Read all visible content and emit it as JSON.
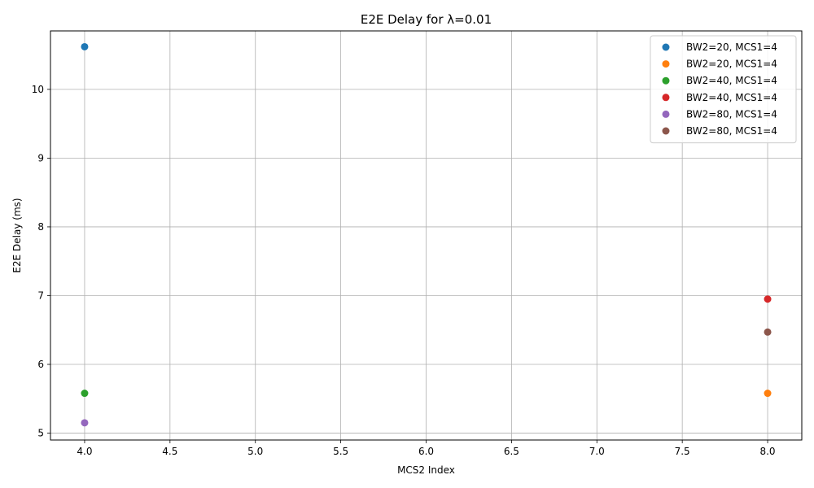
{
  "chart_data": {
    "type": "scatter",
    "title": "E2E Delay for λ=0.01",
    "xlabel": "MCS2 Index",
    "ylabel": "E2E Delay (ms)",
    "xlim": [
      3.8,
      8.2
    ],
    "ylim": [
      4.9,
      10.85
    ],
    "xticks": [
      4.0,
      4.5,
      5.0,
      5.5,
      6.0,
      6.5,
      7.0,
      7.5,
      8.0
    ],
    "xtick_labels": [
      "4.0",
      "4.5",
      "5.0",
      "5.5",
      "6.0",
      "6.5",
      "7.0",
      "7.5",
      "8.0"
    ],
    "yticks": [
      5,
      6,
      7,
      8,
      9,
      10
    ],
    "ytick_labels": [
      "5",
      "6",
      "7",
      "8",
      "9",
      "10"
    ],
    "grid": true,
    "legend_position": "top-right",
    "series": [
      {
        "name": "BW2=20, MCS1=4",
        "color": "#1f77b4",
        "points": [
          {
            "x": 4,
            "y": 10.62
          }
        ]
      },
      {
        "name": "BW2=20, MCS1=4",
        "color": "#ff7f0e",
        "points": [
          {
            "x": 8,
            "y": 5.58
          }
        ]
      },
      {
        "name": "BW2=40, MCS1=4",
        "color": "#2ca02c",
        "points": [
          {
            "x": 4,
            "y": 5.58
          }
        ]
      },
      {
        "name": "BW2=40, MCS1=4",
        "color": "#d62728",
        "points": [
          {
            "x": 8,
            "y": 6.95
          }
        ]
      },
      {
        "name": "BW2=80, MCS1=4",
        "color": "#9467bd",
        "points": [
          {
            "x": 4,
            "y": 5.15
          }
        ]
      },
      {
        "name": "BW2=80, MCS1=4",
        "color": "#8c564b",
        "points": [
          {
            "x": 8,
            "y": 6.47
          }
        ]
      }
    ]
  }
}
